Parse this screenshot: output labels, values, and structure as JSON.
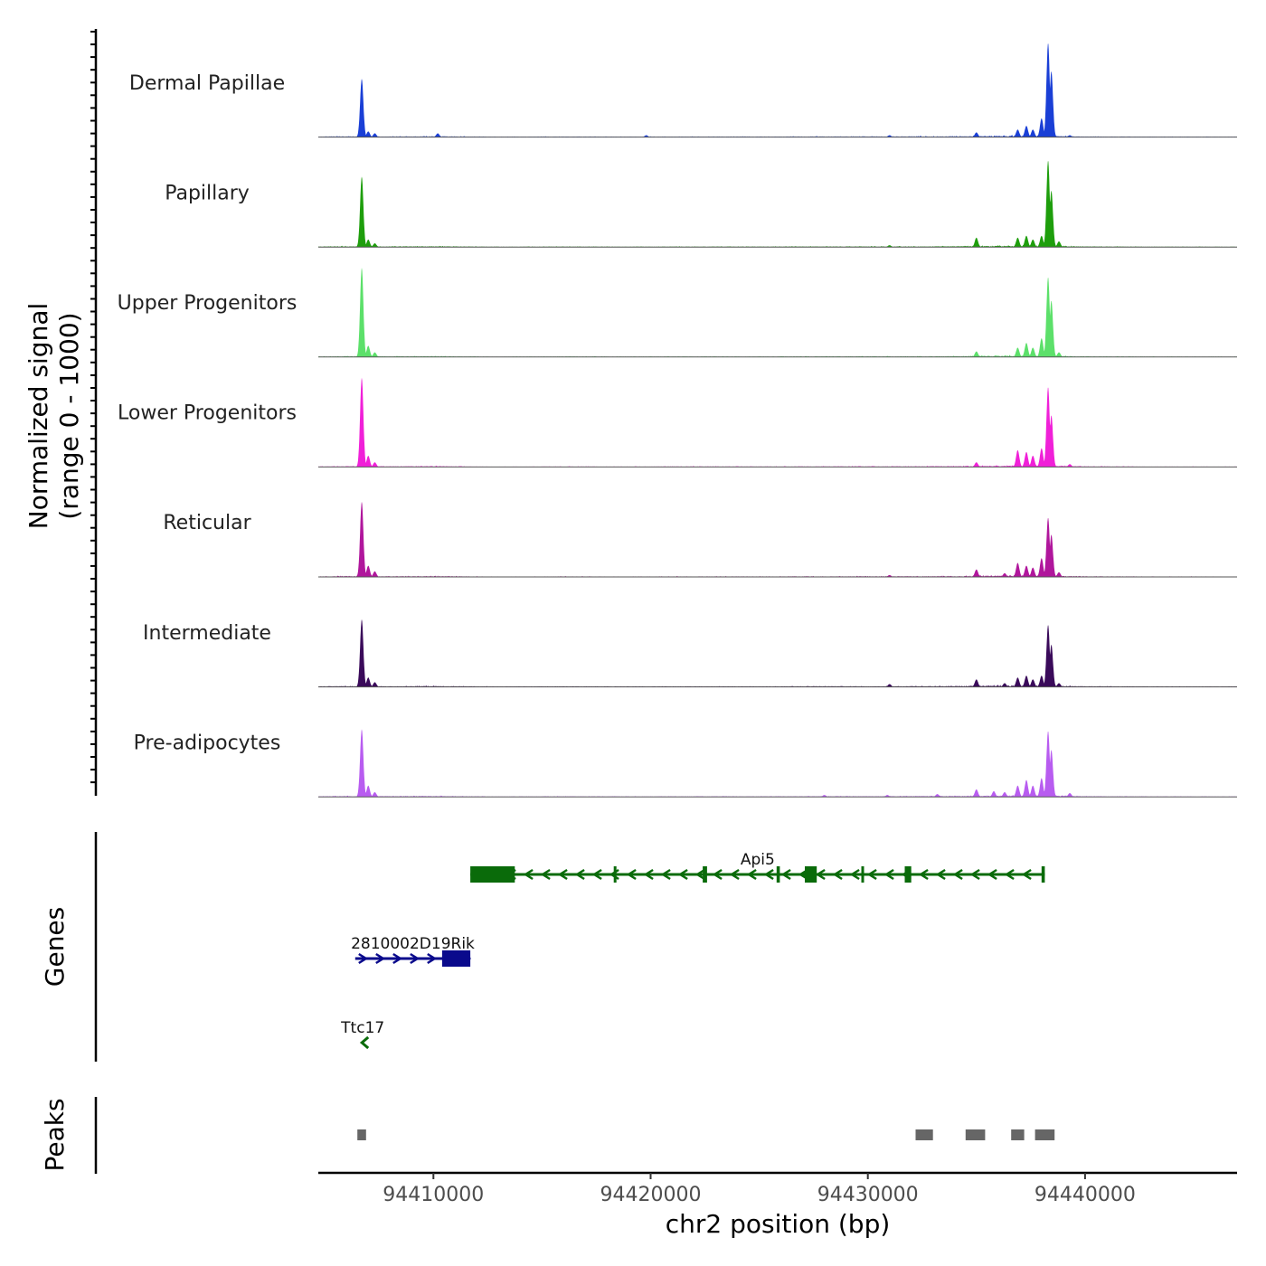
{
  "chart_data": {
    "type": "area",
    "chromosome": "chr2",
    "y_axis_title_line1": "Normalized signal",
    "y_axis_title_line2": "(range 0 - 1000)",
    "y_range": [
      0,
      1000
    ],
    "x_axis_title": "chr2 position (bp)",
    "xlim": [
      94404700,
      94447000
    ],
    "x_ticks": [
      94410000,
      94420000,
      94430000,
      94440000
    ],
    "x_tick_labels": [
      "94410000",
      "94420000",
      "94430000",
      "94440000"
    ],
    "peak_centers": [
      94406700,
      94407000,
      94410200,
      94419800,
      94428000,
      94430900,
      94432300,
      94433200,
      94435000,
      94435800,
      94436300,
      94436900,
      94437300,
      94437600,
      94437800,
      94438000,
      94438300,
      94439300
    ],
    "background": [
      [
        94404700,
        0.012
      ],
      [
        94406000,
        0.02
      ],
      [
        94407500,
        0.015
      ],
      [
        94410000,
        0.02
      ],
      [
        94413000,
        0.008
      ],
      [
        94416000,
        0.012
      ],
      [
        94419000,
        0.01
      ],
      [
        94422000,
        0.012
      ],
      [
        94425000,
        0.012
      ],
      [
        94428000,
        0.015
      ],
      [
        94431000,
        0.015
      ],
      [
        94434000,
        0.02
      ],
      [
        94436000,
        0.03
      ],
      [
        94438500,
        0.03
      ],
      [
        94440000,
        0.015
      ],
      [
        94443000,
        0.01
      ],
      [
        94447000,
        0.008
      ]
    ],
    "tracks": [
      {
        "name": "Dermal Papillae",
        "color": "#1a3fd6",
        "signal": [
          [
            94406700,
            0.62
          ],
          [
            94407000,
            0.06
          ],
          [
            94407300,
            0.04
          ],
          [
            94410200,
            0.04
          ],
          [
            94419800,
            0.02
          ],
          [
            94431000,
            0.02
          ],
          [
            94435000,
            0.05
          ],
          [
            94436900,
            0.08
          ],
          [
            94437300,
            0.12
          ],
          [
            94437600,
            0.08
          ],
          [
            94438000,
            0.2
          ],
          [
            94438300,
            1.0
          ],
          [
            94438450,
            0.7
          ],
          [
            94439300,
            0.02
          ]
        ]
      },
      {
        "name": "Papillary",
        "color": "#1e9e0c",
        "signal": [
          [
            94406700,
            0.75
          ],
          [
            94407000,
            0.08
          ],
          [
            94407300,
            0.04
          ],
          [
            94431000,
            0.02
          ],
          [
            94435000,
            0.1
          ],
          [
            94436900,
            0.1
          ],
          [
            94437300,
            0.12
          ],
          [
            94437600,
            0.08
          ],
          [
            94438000,
            0.12
          ],
          [
            94438300,
            0.92
          ],
          [
            94438450,
            0.6
          ],
          [
            94438800,
            0.06
          ]
        ]
      },
      {
        "name": "Upper Progenitors",
        "color": "#5ce06a",
        "signal": [
          [
            94406700,
            0.95
          ],
          [
            94407000,
            0.12
          ],
          [
            94407300,
            0.05
          ],
          [
            94435000,
            0.06
          ],
          [
            94436900,
            0.1
          ],
          [
            94437300,
            0.15
          ],
          [
            94437600,
            0.1
          ],
          [
            94438000,
            0.2
          ],
          [
            94438300,
            0.85
          ],
          [
            94438450,
            0.6
          ],
          [
            94438800,
            0.05
          ]
        ]
      },
      {
        "name": "Lower Progenitors",
        "color": "#f020d8",
        "signal": [
          [
            94406700,
            0.95
          ],
          [
            94407000,
            0.12
          ],
          [
            94407300,
            0.05
          ],
          [
            94435000,
            0.05
          ],
          [
            94436900,
            0.18
          ],
          [
            94437300,
            0.16
          ],
          [
            94437600,
            0.12
          ],
          [
            94438000,
            0.2
          ],
          [
            94438300,
            0.85
          ],
          [
            94438450,
            0.55
          ],
          [
            94439300,
            0.03
          ]
        ]
      },
      {
        "name": "Reticular",
        "color": "#b0169c",
        "signal": [
          [
            94406700,
            0.8
          ],
          [
            94407000,
            0.12
          ],
          [
            94407300,
            0.06
          ],
          [
            94431000,
            0.02
          ],
          [
            94435000,
            0.08
          ],
          [
            94436300,
            0.04
          ],
          [
            94436900,
            0.15
          ],
          [
            94437300,
            0.12
          ],
          [
            94437600,
            0.1
          ],
          [
            94438000,
            0.2
          ],
          [
            94438300,
            0.63
          ],
          [
            94438450,
            0.45
          ],
          [
            94438800,
            0.05
          ]
        ]
      },
      {
        "name": "Intermediate",
        "color": "#3a0a5a",
        "signal": [
          [
            94406700,
            0.72
          ],
          [
            94407000,
            0.1
          ],
          [
            94407300,
            0.05
          ],
          [
            94431000,
            0.03
          ],
          [
            94435000,
            0.08
          ],
          [
            94436300,
            0.04
          ],
          [
            94436900,
            0.1
          ],
          [
            94437300,
            0.12
          ],
          [
            94437600,
            0.08
          ],
          [
            94438000,
            0.12
          ],
          [
            94438300,
            0.66
          ],
          [
            94438450,
            0.45
          ],
          [
            94438800,
            0.04
          ]
        ]
      },
      {
        "name": "Pre-adipocytes",
        "color": "#b85cf0",
        "signal": [
          [
            94406700,
            0.72
          ],
          [
            94407000,
            0.12
          ],
          [
            94407300,
            0.05
          ],
          [
            94428000,
            0.02
          ],
          [
            94430900,
            0.02
          ],
          [
            94433200,
            0.03
          ],
          [
            94435000,
            0.08
          ],
          [
            94435800,
            0.06
          ],
          [
            94436300,
            0.05
          ],
          [
            94436900,
            0.12
          ],
          [
            94437300,
            0.18
          ],
          [
            94437600,
            0.12
          ],
          [
            94438000,
            0.2
          ],
          [
            94438300,
            0.7
          ],
          [
            94438450,
            0.5
          ],
          [
            94439300,
            0.04
          ]
        ]
      }
    ],
    "genes_track_title": "Genes",
    "genes": [
      {
        "name": "Api5",
        "strand": "-",
        "color": "#0a6b0a",
        "start": 94411700,
        "end": 94438150,
        "exons": [
          [
            94411700,
            94413750
          ],
          [
            94418300,
            94418400
          ],
          [
            94422400,
            94422600
          ],
          [
            94425800,
            94425950
          ],
          [
            94427100,
            94427650
          ],
          [
            94429700,
            94429800
          ],
          [
            94431700,
            94432000
          ],
          [
            94438000,
            94438150
          ]
        ]
      },
      {
        "name": "2810002D19Rik",
        "strand": "+",
        "color": "#0a0a8c",
        "start": 94406400,
        "end": 94411700,
        "exons": [
          [
            94410400,
            94411700
          ]
        ]
      },
      {
        "name": "Ttc17",
        "strand": "-",
        "color": "#0a6b0a",
        "start": 94406750,
        "end": 94406950,
        "exons": []
      }
    ],
    "peaks_track_title": "Peaks",
    "peaks": [
      [
        94406500,
        94406900
      ],
      [
        94432200,
        94433000
      ],
      [
        94434500,
        94435400
      ],
      [
        94436600,
        94437200
      ],
      [
        94437700,
        94438600
      ]
    ]
  }
}
